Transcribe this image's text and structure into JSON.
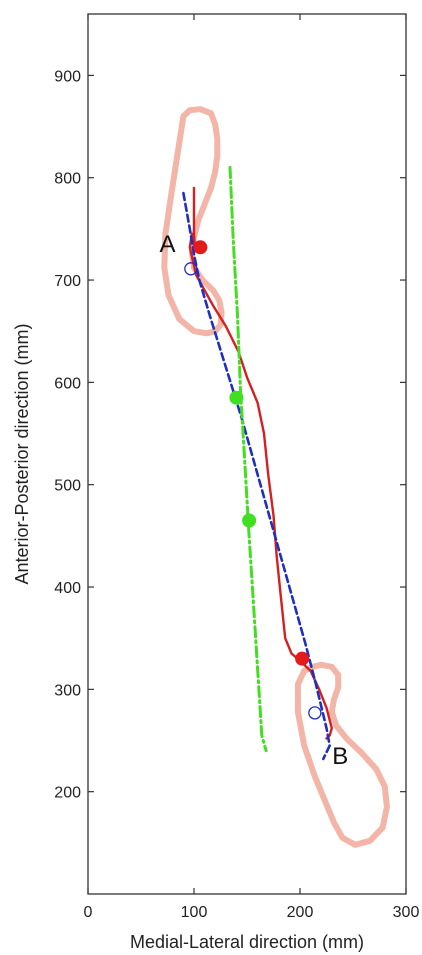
{
  "chart_data": {
    "type": "line",
    "title": "",
    "xlabel": "Medial-Lateral direction (mm)",
    "ylabel": "Anterior-Posterior direction (mm)",
    "xlim": [
      0,
      300
    ],
    "ylim": [
      100,
      960
    ],
    "xticks": [
      0,
      100,
      200,
      300
    ],
    "yticks": [
      200,
      300,
      400,
      500,
      600,
      700,
      800,
      900
    ],
    "grid": false,
    "legend": "none",
    "annotations": [
      {
        "text": "A",
        "x": 75,
        "y": 736
      },
      {
        "text": "B",
        "x": 238,
        "y": 236
      }
    ],
    "footprints": [
      {
        "name": "",
        "color": "#f0a898",
        "x": [
          90,
          96,
          106,
          116,
          120,
          122,
          122,
          120,
          116,
          110,
          104,
          100,
          98,
          100,
          108,
          118,
          124,
          126,
          125,
          120,
          112,
          100,
          86,
          76,
          72,
          73,
          78,
          84,
          90
        ],
        "y": [
          860,
          866,
          867,
          863,
          852,
          838,
          822,
          806,
          790,
          774,
          758,
          742,
          726,
          712,
          700,
          690,
          680,
          668,
          656,
          650,
          648,
          650,
          662,
          685,
          712,
          745,
          780,
          820,
          860
        ]
      },
      {
        "name": "",
        "color": "#f0a898",
        "x": [
          212,
          220,
          230,
          236,
          236,
          232,
          230,
          234,
          244,
          258,
          272,
          280,
          282,
          278,
          266,
          252,
          240,
          232,
          224,
          214,
          204,
          198,
          198,
          204,
          212
        ],
        "y": [
          322,
          324,
          322,
          314,
          302,
          290,
          278,
          265,
          252,
          238,
          222,
          205,
          185,
          165,
          152,
          148,
          155,
          170,
          190,
          215,
          245,
          278,
          305,
          318,
          322
        ]
      }
    ],
    "series": [
      {
        "name": "",
        "color": "#d42020",
        "style": "solid",
        "x": [
          100,
          100,
          100,
          101,
          98,
          96,
          102,
          110,
          118,
          130,
          142,
          150,
          160,
          166,
          170,
          175,
          178,
          182,
          186,
          192,
          200,
          210,
          218,
          225,
          230,
          228,
          225
        ],
        "y": [
          790,
          760,
          745,
          728,
          745,
          732,
          705,
          690,
          675,
          655,
          630,
          605,
          580,
          550,
          510,
          470,
          430,
          390,
          350,
          335,
          328,
          318,
          300,
          282,
          262,
          255,
          252
        ]
      },
      {
        "name": "",
        "color": "#1f2fbf",
        "style": "dashed",
        "x": [
          90,
          96,
          100,
          105,
          115,
          130,
          145,
          160,
          175,
          190,
          205,
          215,
          225,
          228,
          222
        ],
        "y": [
          785,
          750,
          725,
          700,
          665,
          615,
          565,
          510,
          455,
          400,
          345,
          305,
          262,
          245,
          232
        ]
      },
      {
        "name": "",
        "color": "#44dd22",
        "style": "dashdot",
        "x": [
          134,
          137,
          141,
          144,
          148,
          152,
          156,
          160,
          164,
          168
        ],
        "y": [
          810,
          740,
          665,
          590,
          520,
          450,
          385,
          320,
          255,
          240
        ]
      }
    ],
    "markers": [
      {
        "type": "filled",
        "color": "#e31b1b",
        "x": 106,
        "y": 732
      },
      {
        "type": "filled",
        "color": "#e31b1b",
        "x": 202,
        "y": 330
      },
      {
        "type": "filled",
        "color": "#3ee01f",
        "x": 140,
        "y": 585
      },
      {
        "type": "filled",
        "color": "#3ee01f",
        "x": 152,
        "y": 465
      },
      {
        "type": "open",
        "color": "#1f2fbf",
        "x": 97,
        "y": 711
      },
      {
        "type": "open",
        "color": "#1f2fbf",
        "x": 214,
        "y": 277
      }
    ]
  }
}
